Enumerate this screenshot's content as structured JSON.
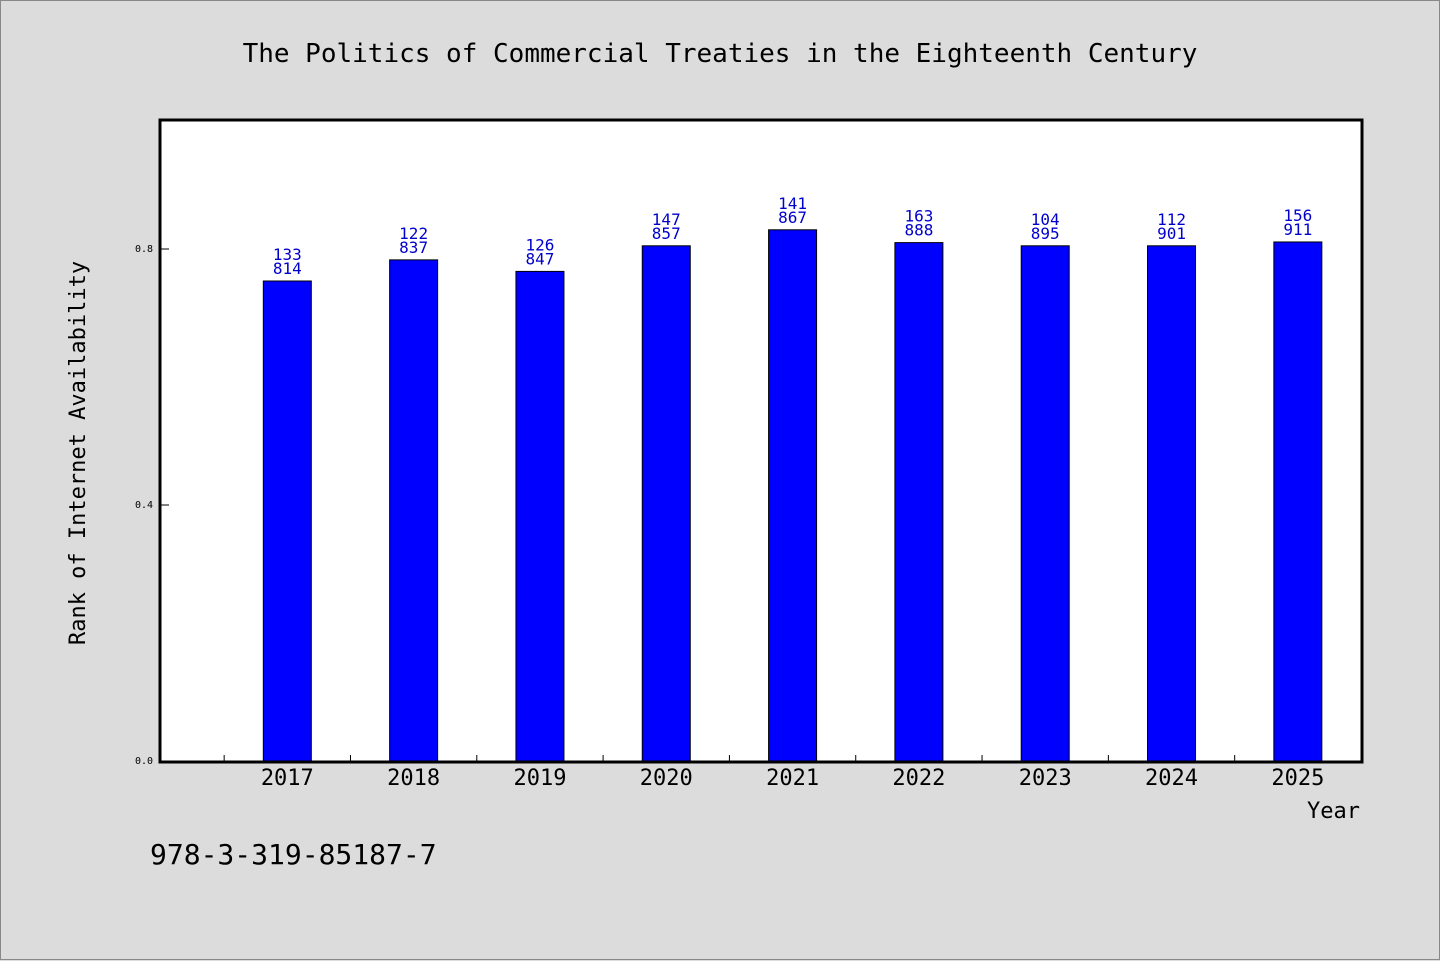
{
  "chart_data": {
    "type": "bar",
    "title": "The Politics of Commercial Treaties in the Eighteenth Century",
    "xlabel": "Year",
    "ylabel": "Rank of Internet Availability",
    "categories": [
      "2017",
      "2018",
      "2019",
      "2020",
      "2021",
      "2022",
      "2023",
      "2024",
      "2025"
    ],
    "values": [
      0.75,
      0.783,
      0.765,
      0.805,
      0.83,
      0.81,
      0.805,
      0.805,
      0.811
    ],
    "label_top": [
      "133",
      "122",
      "126",
      "147",
      "141",
      "163",
      "104",
      "112",
      "156"
    ],
    "label_bottom": [
      "814",
      "837",
      "847",
      "857",
      "867",
      "888",
      "895",
      "901",
      "911"
    ],
    "yticks": [
      "0.0",
      "0.4",
      "0.8"
    ],
    "ylim": [
      0,
      1.0
    ],
    "xlim": [
      2016,
      2025.5
    ],
    "grid": false,
    "bar_color": "#0000ff",
    "label_color": "#0000cc"
  },
  "footer": {
    "isbn": "978-3-319-85187-7"
  }
}
